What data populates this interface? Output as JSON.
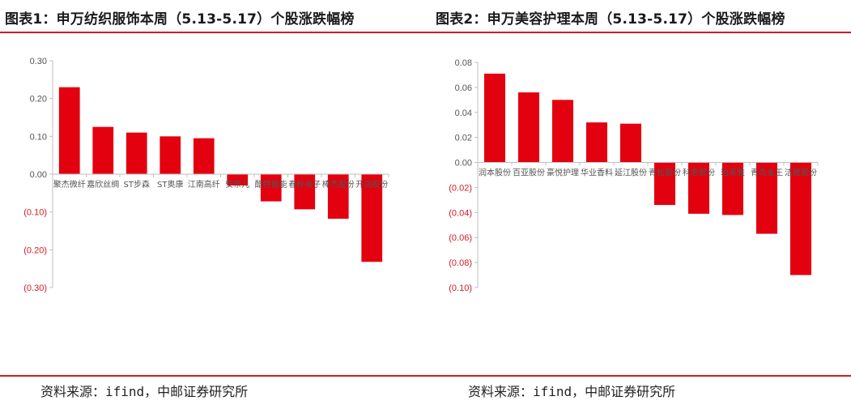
{
  "titles": {
    "left": "图表1：申万纺织服饰本周（5.13-5.17）个股涨跌幅榜",
    "right": "图表2：申万美容护理本周（5.13-5.17）个股涨跌幅榜"
  },
  "sources": {
    "left": "资料来源：ifind，中邮证券研究所",
    "right": "资料来源：ifind，中邮证券研究所"
  },
  "colors": {
    "bar": "#e3000f",
    "negative_tick": "#d11b24",
    "positive_tick": "#555555",
    "rule": "#d11b24"
  },
  "chart_data": [
    {
      "type": "bar",
      "title": "图表1：申万纺织服饰本周（5.13-5.17）个股涨跌幅榜",
      "categories": [
        "聚杰微纤",
        "嘉欣丝绸",
        "ST步森",
        "ST奥康",
        "江南高纤",
        "安奈儿",
        "酷特智能",
        "春秋电子",
        "棒杰股份",
        "开润股份"
      ],
      "values": [
        0.23,
        0.125,
        0.11,
        0.1,
        0.095,
        -0.03,
        -0.072,
        -0.093,
        -0.118,
        -0.232
      ],
      "ylim": [
        -0.3,
        0.3
      ],
      "yticks": [
        0.3,
        0.2,
        0.1,
        0.0,
        -0.1,
        -0.2,
        -0.3
      ],
      "ytick_labels": [
        "0.30",
        "0.20",
        "0.10",
        "0.00",
        "(0.10)",
        "(0.20)",
        "(0.30)"
      ],
      "xlabel": "",
      "ylabel": "",
      "grid": false,
      "legend": "none"
    },
    {
      "type": "bar",
      "title": "图表2：申万美容护理本周（5.13-5.17）个股涨跌幅榜",
      "categories": [
        "润本股份",
        "百亚股份",
        "豪悦护理",
        "华业香料",
        "延江股份",
        "青松股份",
        "科思股份",
        "珀莱雅",
        "青岛金王",
        "洁雅股份"
      ],
      "values": [
        0.071,
        0.056,
        0.05,
        0.032,
        0.031,
        -0.034,
        -0.041,
        -0.042,
        -0.057,
        -0.09
      ],
      "ylim": [
        -0.1,
        0.08
      ],
      "yticks": [
        0.08,
        0.06,
        0.04,
        0.02,
        0.0,
        -0.02,
        -0.04,
        -0.06,
        -0.08,
        -0.1
      ],
      "ytick_labels": [
        "0.08",
        "0.06",
        "0.04",
        "0.02",
        "0.00",
        "(0.02)",
        "(0.04)",
        "(0.06)",
        "(0.08)",
        "(0.10)"
      ],
      "xlabel": "",
      "ylabel": "",
      "grid": false,
      "legend": "none"
    }
  ]
}
